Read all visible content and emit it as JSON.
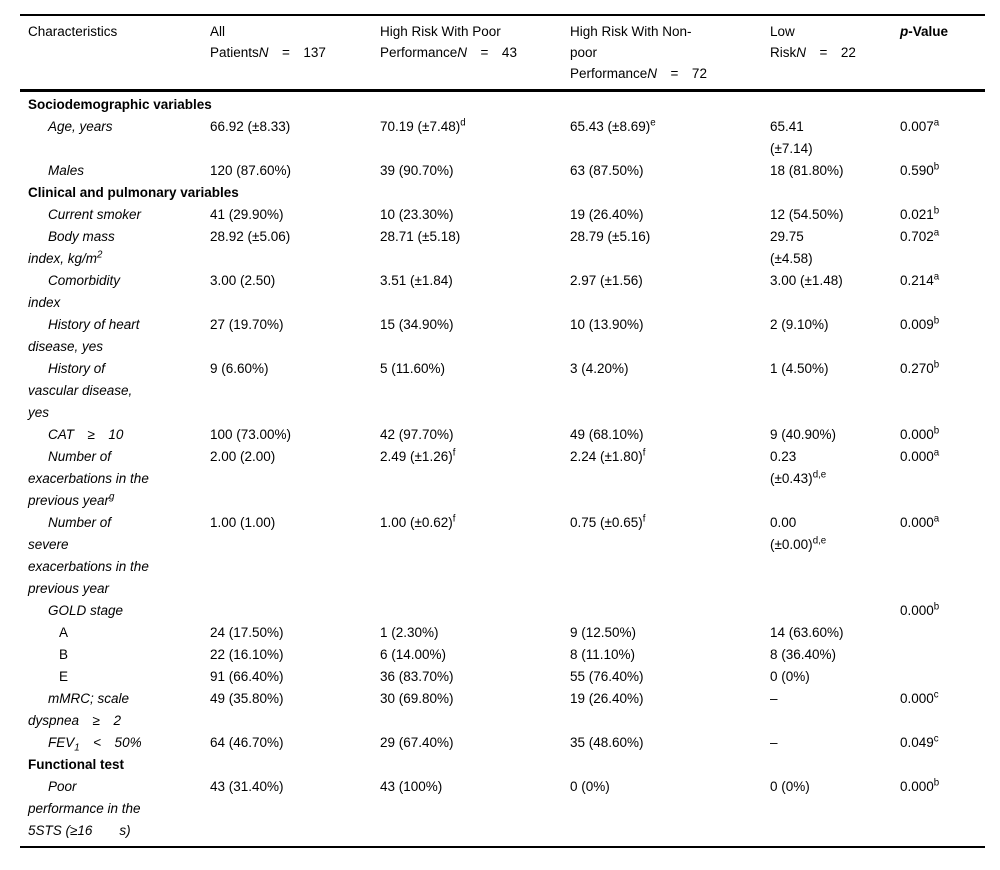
{
  "colors": {
    "background": "#ffffff",
    "text": "#000000",
    "rule": "#000000"
  },
  "table": {
    "columns": [
      {
        "id": "characteristics",
        "bold": false,
        "header_lines": [
          "Characteristics"
        ]
      },
      {
        "id": "all-patients",
        "bold": false,
        "header_lines": [
          "All",
          "Patients*N* = 137"
        ]
      },
      {
        "id": "high-risk-poor-performance",
        "bold": false,
        "header_lines": [
          "High Risk With Poor",
          "Performance*N* = 43"
        ]
      },
      {
        "id": "high-risk-nonpoor-performance",
        "bold": false,
        "header_lines": [
          "High Risk With Non-",
          "poor",
          "Performance*N* = 72"
        ]
      },
      {
        "id": "low-risk",
        "bold": false,
        "header_lines": [
          "Low",
          "Risk*N* = 22"
        ]
      },
      {
        "id": "p-value",
        "bold": true,
        "header_lines": [
          "*p*-Value"
        ]
      }
    ],
    "rows": [
      {
        "type": "section",
        "label_lines": [
          "Sociodemographic variables"
        ]
      },
      {
        "type": "item",
        "label_lines": [
          "Age, years"
        ],
        "cells": [
          [
            "66.92 (±8.33)"
          ],
          [
            "70.19 (±7.48)^{d}"
          ],
          [
            "65.43 (±8.69)^{e}"
          ],
          [
            "65.41",
            "(±7.14)"
          ],
          [
            "0.007^{a}"
          ]
        ]
      },
      {
        "type": "item",
        "label_lines": [
          "Males"
        ],
        "cells": [
          [
            "120 (87.60%)"
          ],
          [
            "39 (90.70%)"
          ],
          [
            "63 (87.50%)"
          ],
          [
            "18 (81.80%)"
          ],
          [
            "0.590^{b}"
          ]
        ]
      },
      {
        "type": "section",
        "label_lines": [
          "Clinical and pulmonary variables"
        ]
      },
      {
        "type": "item",
        "label_lines": [
          "Current smoker"
        ],
        "cells": [
          [
            "41 (29.90%)"
          ],
          [
            "10 (23.30%)"
          ],
          [
            "19 (26.40%)"
          ],
          [
            "12 (54.50%)"
          ],
          [
            "0.021^{b}"
          ]
        ]
      },
      {
        "type": "item",
        "label_lines": [
          "Body mass",
          "index, kg/m^{2}"
        ],
        "cells": [
          [
            "28.92 (±5.06)"
          ],
          [
            "28.71 (±5.18)"
          ],
          [
            "28.79 (±5.16)"
          ],
          [
            "29.75",
            "(±4.58)"
          ],
          [
            "0.702^{a}"
          ]
        ]
      },
      {
        "type": "item",
        "label_lines": [
          "Comorbidity",
          "index"
        ],
        "cells": [
          [
            "3.00 (2.50)"
          ],
          [
            "3.51 (±1.84)"
          ],
          [
            "2.97 (±1.56)"
          ],
          [
            "3.00 (±1.48)"
          ],
          [
            "0.214^{a}"
          ]
        ]
      },
      {
        "type": "item",
        "label_lines": [
          "History of heart",
          "disease, yes"
        ],
        "cells": [
          [
            "27 (19.70%)"
          ],
          [
            "15 (34.90%)"
          ],
          [
            "10 (13.90%)"
          ],
          [
            "2 (9.10%)"
          ],
          [
            "0.009^{b}"
          ]
        ]
      },
      {
        "type": "item",
        "label_lines": [
          "History of",
          "vascular disease,",
          "yes"
        ],
        "cells": [
          [
            "9 (6.60%)"
          ],
          [
            "5 (11.60%)"
          ],
          [
            "3 (4.20%)"
          ],
          [
            "1 (4.50%)"
          ],
          [
            "0.270^{b}"
          ]
        ]
      },
      {
        "type": "item",
        "label_lines": [
          "CAT ≥ 10"
        ],
        "cells": [
          [
            "100 (73.00%)"
          ],
          [
            "42 (97.70%)"
          ],
          [
            "49 (68.10%)"
          ],
          [
            "9 (40.90%)"
          ],
          [
            "0.000^{b}"
          ]
        ]
      },
      {
        "type": "item",
        "label_lines": [
          "Number of",
          "exacerbations in the",
          "previous year^{g}"
        ],
        "cells": [
          [
            "2.00 (2.00)"
          ],
          [
            "2.49 (±1.26)^{f}"
          ],
          [
            "2.24 (±1.80)^{f}"
          ],
          [
            "0.23",
            "(±0.43)^{d,e}"
          ],
          [
            "0.000^{a}"
          ]
        ]
      },
      {
        "type": "item",
        "label_lines": [
          "Number of",
          "severe",
          "exacerbations in the",
          "previous year"
        ],
        "cells": [
          [
            "1.00 (1.00)"
          ],
          [
            "1.00 (±0.62)^{f}"
          ],
          [
            "0.75 (±0.65)^{f}"
          ],
          [
            "0.00",
            "(±0.00)^{d,e}"
          ],
          [
            "0.000^{a}"
          ]
        ]
      },
      {
        "type": "item",
        "label_lines": [
          "GOLD stage"
        ],
        "cells": [
          [],
          [],
          [],
          [],
          [
            "0.000^{b}"
          ]
        ]
      },
      {
        "type": "subitem",
        "label_lines": [
          "A"
        ],
        "cells": [
          [
            "24 (17.50%)"
          ],
          [
            "1 (2.30%)"
          ],
          [
            "9 (12.50%)"
          ],
          [
            "14 (63.60%)"
          ],
          []
        ]
      },
      {
        "type": "subitem",
        "label_lines": [
          "B"
        ],
        "cells": [
          [
            "22 (16.10%)"
          ],
          [
            "6 (14.00%)"
          ],
          [
            "8 (11.10%)"
          ],
          [
            "8 (36.40%)"
          ],
          []
        ]
      },
      {
        "type": "subitem",
        "label_lines": [
          "E"
        ],
        "cells": [
          [
            "91 (66.40%)"
          ],
          [
            "36 (83.70%)"
          ],
          [
            "55 (76.40%)"
          ],
          [
            "0 (0%)"
          ],
          []
        ]
      },
      {
        "type": "item",
        "label_lines": [
          "mMRC; scale",
          "dyspnea ≥ 2"
        ],
        "cells": [
          [
            "49 (35.80%)"
          ],
          [
            "30 (69.80%)"
          ],
          [
            "19 (26.40%)"
          ],
          [
            "–"
          ],
          [
            "0.000^{c}"
          ]
        ]
      },
      {
        "type": "item",
        "label_lines": [
          "FEV_{1} < 50%"
        ],
        "cells": [
          [
            "64 (46.70%)"
          ],
          [
            "29 (67.40%)"
          ],
          [
            "35 (48.60%)"
          ],
          [
            "–"
          ],
          [
            "0.049^{c}"
          ]
        ]
      },
      {
        "type": "section",
        "label_lines": [
          "Functional test"
        ]
      },
      {
        "type": "item",
        "label_lines": [
          "Poor",
          "performance in the",
          "5STS (≥16  s)"
        ],
        "cells": [
          [
            "43 (31.40%)"
          ],
          [
            "43 (100%)"
          ],
          [
            "0 (0%)"
          ],
          [
            "0 (0%)"
          ],
          [
            "0.000^{b}"
          ]
        ]
      }
    ]
  }
}
